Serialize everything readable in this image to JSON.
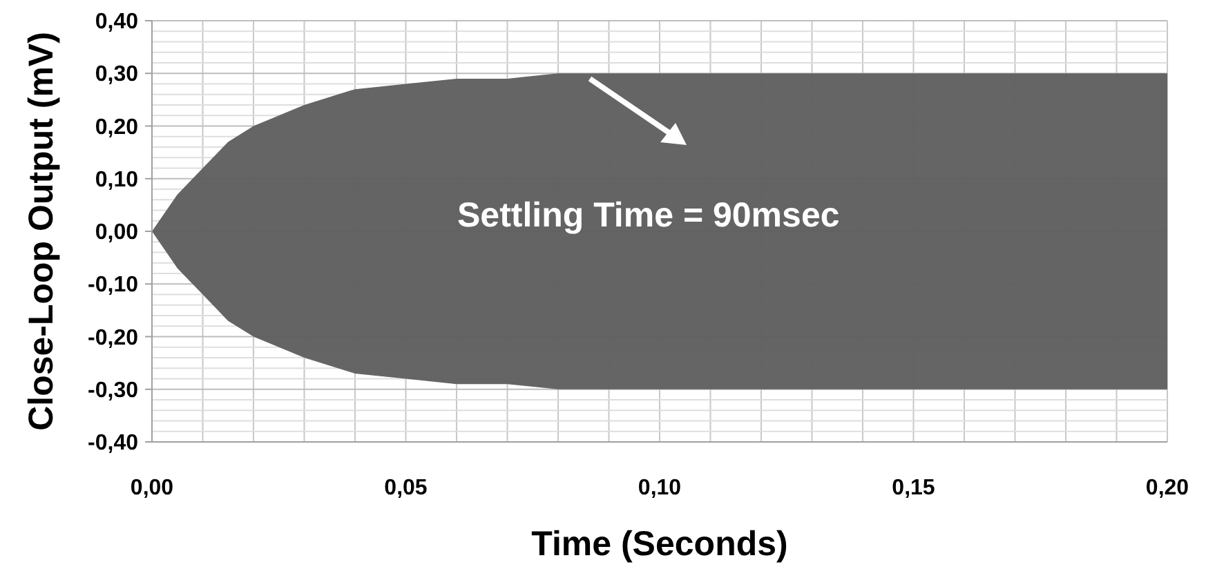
{
  "chart_data": {
    "type": "area",
    "xlabel": "Time (Seconds)",
    "ylabel": "Close-Loop Output (mV)",
    "x": [
      0,
      0.005,
      0.01,
      0.015,
      0.02,
      0.025,
      0.03,
      0.04,
      0.05,
      0.06,
      0.07,
      0.08,
      0.09,
      0.1,
      0.15,
      0.2
    ],
    "series": [
      {
        "color": "#606060",
        "values": [
          0,
          0.07,
          0.12,
          0.17,
          0.2,
          0.22,
          0.24,
          0.27,
          0.28,
          0.29,
          0.29,
          0.3,
          0.3,
          0.3,
          0.3,
          0.3
        ]
      },
      {
        "color": "#606060",
        "values": [
          0,
          -0.07,
          -0.12,
          -0.17,
          -0.2,
          -0.22,
          -0.24,
          -0.27,
          -0.28,
          -0.29,
          -0.29,
          -0.3,
          -0.3,
          -0.3,
          -0.3,
          -0.3
        ]
      }
    ],
    "xlim": [
      0,
      0.2
    ],
    "xticks": [
      {
        "value": 0,
        "label": "0,00"
      },
      {
        "value": 0.01,
        "label": null
      },
      {
        "value": 0.02,
        "label": null
      },
      {
        "value": 0.03,
        "label": null
      },
      {
        "value": 0.04,
        "label": null
      },
      {
        "value": 0.05,
        "label": "0,05"
      },
      {
        "value": 0.06,
        "label": null
      },
      {
        "value": 0.07,
        "label": null
      },
      {
        "value": 0.08,
        "label": null
      },
      {
        "value": 0.09,
        "label": null
      },
      {
        "value": 0.1,
        "label": "0,10"
      },
      {
        "value": 0.11,
        "label": null
      },
      {
        "value": 0.12,
        "label": null
      },
      {
        "value": 0.13,
        "label": null
      },
      {
        "value": 0.14,
        "label": null
      },
      {
        "value": 0.15,
        "label": "0,15"
      },
      {
        "value": 0.16,
        "label": null
      },
      {
        "value": 0.17,
        "label": null
      },
      {
        "value": 0.18,
        "label": null
      },
      {
        "value": 0.19,
        "label": null
      },
      {
        "value": 0.2,
        "label": "0,20"
      }
    ],
    "ylim": [
      -0.4,
      0.4
    ],
    "yticks": [
      {
        "value": -0.4,
        "label": "-0,40"
      },
      {
        "value": -0.38,
        "label": null
      },
      {
        "value": -0.36,
        "label": null
      },
      {
        "value": -0.34,
        "label": null
      },
      {
        "value": -0.32,
        "label": null
      },
      {
        "value": -0.3,
        "label": "-0,30"
      },
      {
        "value": -0.28,
        "label": null
      },
      {
        "value": -0.26,
        "label": null
      },
      {
        "value": -0.24,
        "label": null
      },
      {
        "value": -0.22,
        "label": null
      },
      {
        "value": -0.2,
        "label": "-0,20"
      },
      {
        "value": -0.18,
        "label": null
      },
      {
        "value": -0.16,
        "label": null
      },
      {
        "value": -0.14,
        "label": null
      },
      {
        "value": -0.12,
        "label": null
      },
      {
        "value": -0.1,
        "label": "-0,10"
      },
      {
        "value": -0.08,
        "label": null
      },
      {
        "value": -0.06,
        "label": null
      },
      {
        "value": -0.04,
        "label": null
      },
      {
        "value": -0.02,
        "label": null
      },
      {
        "value": 0,
        "label": "0,00"
      },
      {
        "value": 0.02,
        "label": null
      },
      {
        "value": 0.04,
        "label": null
      },
      {
        "value": 0.06,
        "label": null
      },
      {
        "value": 0.08,
        "label": null
      },
      {
        "value": 0.1,
        "label": "0,10"
      },
      {
        "value": 0.12,
        "label": null
      },
      {
        "value": 0.14,
        "label": null
      },
      {
        "value": 0.16,
        "label": null
      },
      {
        "value": 0.18,
        "label": null
      },
      {
        "value": 0.2,
        "label": "0,20"
      },
      {
        "value": 0.22,
        "label": null
      },
      {
        "value": 0.24,
        "label": null
      },
      {
        "value": 0.26,
        "label": null
      },
      {
        "value": 0.28,
        "label": null
      },
      {
        "value": 0.3,
        "label": "0,30"
      },
      {
        "value": 0.32,
        "label": null
      },
      {
        "value": 0.34,
        "label": null
      },
      {
        "value": 0.36,
        "label": null
      },
      {
        "value": 0.38,
        "label": null
      },
      {
        "value": 0.4,
        "label": "0,40"
      }
    ],
    "grid": true,
    "annotations": [
      "Settling Time = 90msec"
    ]
  }
}
